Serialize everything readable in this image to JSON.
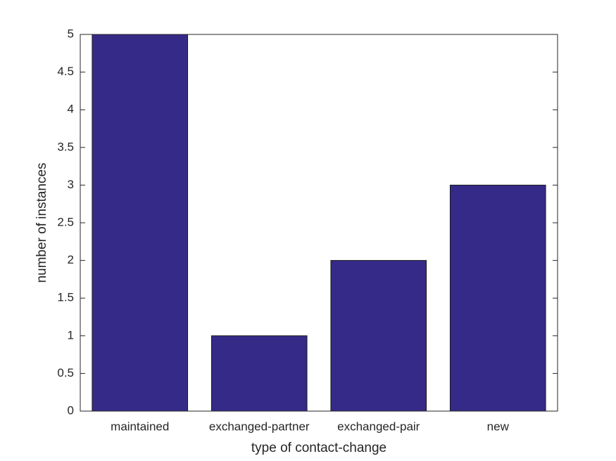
{
  "chart_data": {
    "type": "bar",
    "xlabel": "type of contact-change",
    "ylabel": "number of instances",
    "categories": [
      "maintained",
      "exchanged-partner",
      "exchanged-pair",
      "new"
    ],
    "values": [
      5,
      1,
      2,
      3
    ],
    "color": "#352a87",
    "ylim": [
      0,
      5
    ],
    "yticks": [
      0,
      0.5,
      1,
      1.5,
      2,
      2.5,
      3,
      3.5,
      4,
      4.5,
      5
    ],
    "grid": false
  }
}
